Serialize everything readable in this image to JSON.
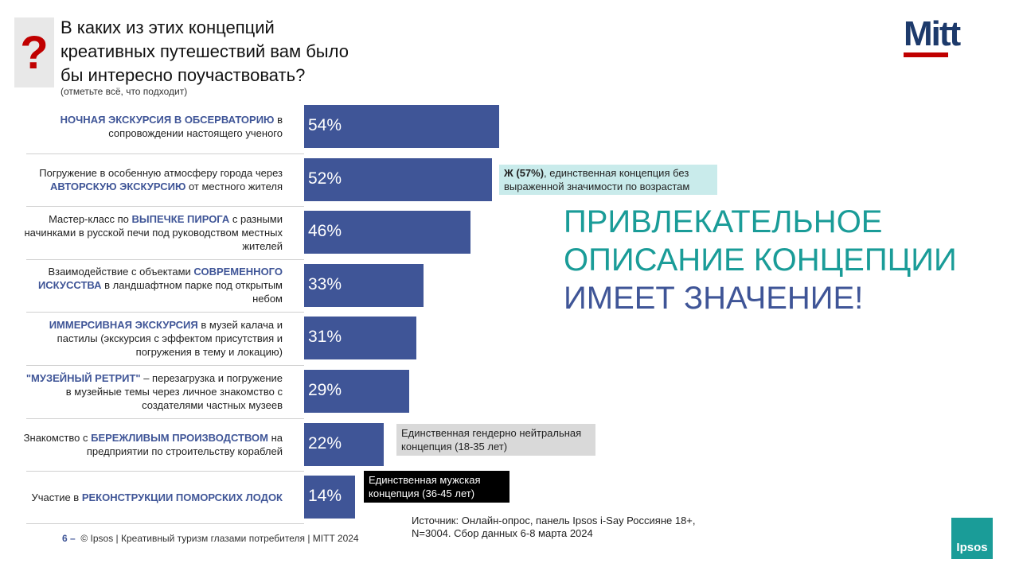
{
  "chart_data": {
    "type": "hbar",
    "title_lines": [
      "В каких из этих концепций",
      "креативных путешествий вам было",
      "бы интересно поучаствовать?"
    ],
    "subtitle": "(отметьте всё, что подходит)",
    "categories": [
      [
        {
          "text": "НОЧНАЯ ЭКСКУРСИЯ В ОБСЕРВАТОРИЮ",
          "bold": true
        },
        {
          "text": " в сопровождении настоящего ученого"
        }
      ],
      [
        {
          "text": "Погружение в особенную атмосферу города через "
        },
        {
          "text": "АВТОРСКУЮ ЭКСКУРСИЮ",
          "bold": true
        },
        {
          "text": " от местного жителя"
        }
      ],
      [
        {
          "text": "Мастер-класс по "
        },
        {
          "text": "ВЫПЕЧКЕ ПИРОГА",
          "bold": true
        },
        {
          "text": " с разными начинками в русской печи под руководством местных жителей"
        }
      ],
      [
        {
          "text": "Взаимодействие с объектами "
        },
        {
          "text": "СОВРЕМЕННОГО ИСКУССТВА",
          "bold": true
        },
        {
          "text": " в ландшафтном парке под открытым небом"
        }
      ],
      [
        {
          "text": "ИММЕРСИВНАЯ ЭКСКУРСИЯ",
          "bold": true
        },
        {
          "text": " в музей калача и пастилы (экскурсия с эффектом присутствия и погружения в тему и локацию)"
        }
      ],
      [
        {
          "text": "\"МУЗЕЙНЫЙ РЕТРИТ\"",
          "bold": true
        },
        {
          "text": " – перезагрузка и погружение в музейные темы через личное знакомство с создателями частных музеев"
        }
      ],
      [
        {
          "text": "Знакомство с "
        },
        {
          "text": "БЕРЕЖЛИВЫМ ПРОИЗВОДСТВОМ",
          "bold": true
        },
        {
          "text": " на предприятии по строительству кораблей"
        }
      ],
      [
        {
          "text": "Участие в "
        },
        {
          "text": "РЕКОНСТРУКЦИИ ПОМОРСКИХ ЛОДОК",
          "bold": true
        }
      ]
    ],
    "values": [
      54,
      52,
      46,
      33,
      31,
      29,
      22,
      14
    ],
    "value_labels": [
      "54%",
      "52%",
      "46%",
      "33%",
      "31%",
      "29%",
      "22%",
      "14%"
    ],
    "color": "#3f5597",
    "annotations": [
      {
        "row": 1,
        "parts": [
          {
            "text": "Ж (57%)",
            "bold": true
          },
          {
            "text": ", единственная концепция без выраженной значимости по возрастам"
          }
        ]
      },
      {
        "row": 6,
        "parts": [
          {
            "text": "Единственная гендерно нейтральная концепция (18-35 лет)"
          }
        ]
      },
      {
        "row": 7,
        "parts": [
          {
            "text": "Единственная мужская концепция (36-45 лет)"
          }
        ]
      }
    ],
    "headline": [
      "ПРИВЛЕКАТЕЛЬНОЕ",
      "ОПИСАНИЕ КОНЦЕПЦИИ",
      "ИМЕЕТ ЗНАЧЕНИЕ!"
    ],
    "source": "Источник: Онлайн-опрос, панель Ipsos i-Say Россияне 18+, N=3004. Сбор данных 6-8 марта 2024",
    "page_number": "6 –",
    "footer": "© Ipsos | Креативный туризм глазами потребителя | MITT 2024",
    "logo": "Mitt",
    "brand": "Ipsos"
  }
}
